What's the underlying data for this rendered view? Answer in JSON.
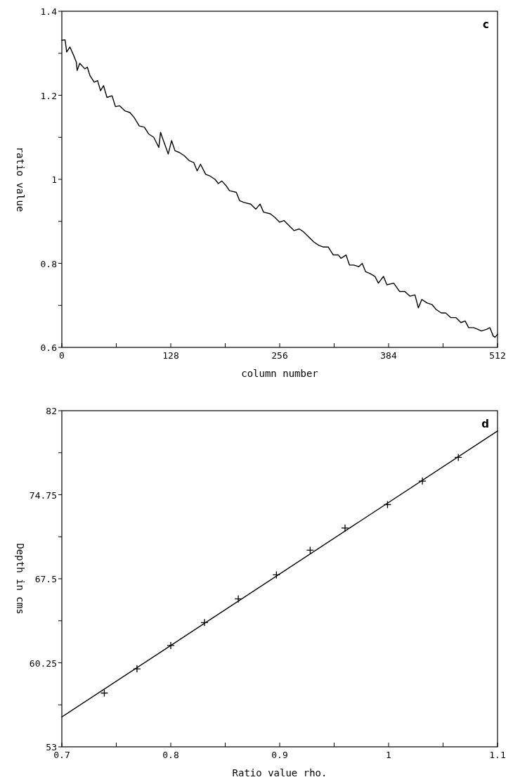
{
  "chart_data": [
    {
      "type": "line",
      "xlabel": "column number",
      "ylabel": "ratio value",
      "annotations": [
        "c"
      ],
      "xlim": [
        0,
        512
      ],
      "ylim": [
        0.6,
        1.4
      ],
      "xticks": [
        0,
        {
          "value": 64,
          "label": null
        },
        128,
        {
          "value": 192,
          "label": null
        },
        256,
        {
          "value": 320,
          "label": null
        },
        384,
        {
          "value": 448,
          "label": null
        },
        512
      ],
      "yticks": [
        {
          "value": 0.6,
          "label": "0.6"
        },
        {
          "value": 0.7,
          "label": null
        },
        {
          "value": 0.8,
          "label": "0.8"
        },
        {
          "value": 0.9,
          "label": null
        },
        1,
        {
          "value": 1.1,
          "label": null
        },
        {
          "value": 1.2,
          "label": "1.2"
        },
        {
          "value": 1.3,
          "label": null
        },
        {
          "value": 1.4,
          "label": "1.4"
        }
      ],
      "series": [
        {
          "color": "#000000",
          "x": [
            0,
            3.8,
            5.7,
            9.5,
            13,
            17,
            18,
            21,
            27,
            30,
            33,
            38,
            42,
            45.5,
            49,
            53,
            59,
            63,
            68,
            74,
            80,
            85,
            91,
            97,
            102,
            108,
            114,
            116,
            118,
            123,
            125,
            129,
            133,
            138,
            144,
            150,
            155,
            159,
            163,
            169,
            174,
            180,
            184,
            188,
            193,
            197,
            205,
            209,
            214,
            222,
            228,
            233,
            237,
            245,
            250,
            256,
            261,
            267,
            273,
            279,
            284,
            290,
            296,
            302,
            307,
            313,
            319,
            325,
            328,
            334,
            338,
            343,
            349,
            353,
            357,
            362,
            368,
            372,
            378,
            382,
            390,
            397,
            403,
            409,
            415,
            419,
            423,
            429,
            435,
            440,
            446,
            451,
            457,
            463,
            469,
            474,
            478,
            484,
            489,
            493,
            499,
            503,
            507,
            509,
            512
          ],
          "values": [
            1.331,
            1.332,
            1.303,
            1.315,
            1.299,
            1.279,
            1.259,
            1.276,
            1.263,
            1.267,
            1.247,
            1.231,
            1.235,
            1.211,
            1.223,
            1.195,
            1.199,
            1.173,
            1.175,
            1.163,
            1.159,
            1.147,
            1.127,
            1.124,
            1.108,
            1.1,
            1.076,
            1.112,
            1.1,
            1.072,
            1.06,
            1.092,
            1.068,
            1.064,
            1.056,
            1.044,
            1.04,
            1.02,
            1.036,
            1.012,
            1.008,
            1.0,
            0.99,
            0.996,
            0.985,
            0.973,
            0.969,
            0.949,
            0.945,
            0.941,
            0.929,
            0.941,
            0.922,
            0.918,
            0.91,
            0.898,
            0.902,
            0.89,
            0.878,
            0.882,
            0.875,
            0.863,
            0.851,
            0.843,
            0.839,
            0.839,
            0.82,
            0.82,
            0.812,
            0.82,
            0.796,
            0.796,
            0.792,
            0.8,
            0.78,
            0.776,
            0.769,
            0.753,
            0.769,
            0.749,
            0.753,
            0.733,
            0.733,
            0.722,
            0.725,
            0.694,
            0.714,
            0.706,
            0.702,
            0.69,
            0.682,
            0.682,
            0.671,
            0.671,
            0.659,
            0.663,
            0.647,
            0.647,
            0.643,
            0.639,
            0.643,
            0.647,
            0.627,
            0.624,
            0.631
          ]
        }
      ]
    },
    {
      "type": "scatter",
      "xlabel": "Ratio value rho.",
      "ylabel": "Depth in cms",
      "annotations": [
        "d"
      ],
      "xlim": [
        0.7,
        1.1
      ],
      "ylim": [
        53,
        82
      ],
      "marker": "cross",
      "xticks": [
        {
          "value": 0.7,
          "label": "0.7"
        },
        {
          "value": 0.75,
          "label": null
        },
        {
          "value": 0.8,
          "label": "0.8"
        },
        {
          "value": 0.85,
          "label": null
        },
        {
          "value": 0.9,
          "label": "0.9"
        },
        {
          "value": 0.95,
          "label": null
        },
        1,
        {
          "value": 1.05,
          "label": null
        },
        {
          "value": 1.1,
          "label": "1.1"
        }
      ],
      "yticks": [
        53,
        {
          "value": 56.625,
          "label": null
        },
        60.25,
        {
          "value": 63.875,
          "label": null
        },
        67.5,
        {
          "value": 71.125,
          "label": null
        },
        74.75,
        {
          "value": 78.375,
          "label": null
        },
        82
      ],
      "series": [
        {
          "color": "#000000",
          "x": [
            0.739,
            0.769,
            0.8,
            0.831,
            0.862,
            0.897,
            0.928,
            0.96,
            0.999,
            1.031,
            1.064
          ],
          "values": [
            57.64,
            59.73,
            61.74,
            63.72,
            65.76,
            67.84,
            69.96,
            71.87,
            73.9,
            75.93,
            77.97
          ]
        },
        {
          "type": "line",
          "marker": "none",
          "color": "#000000",
          "x": [
            0.7,
            1.1
          ],
          "values": [
            55.58,
            80.25
          ]
        }
      ]
    }
  ]
}
